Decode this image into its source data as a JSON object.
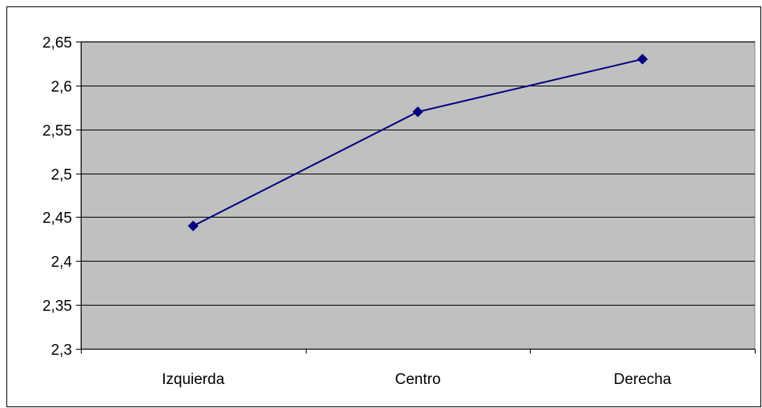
{
  "chart_data": {
    "type": "line",
    "categories": [
      "Izquierda",
      "Centro",
      "Derecha"
    ],
    "series": [
      {
        "values": [
          2.44,
          2.57,
          2.63
        ]
      }
    ],
    "ylim": [
      2.3,
      2.65
    ],
    "yticks": [
      2.3,
      2.35,
      2.4,
      2.45,
      2.5,
      2.55,
      2.6,
      2.65
    ],
    "ytick_labels": [
      "2,3",
      "2,35",
      "2,4",
      "2,45",
      "2,5",
      "2,55",
      "2,6",
      "2,65"
    ],
    "grid": true,
    "legend": "none",
    "colors": {
      "plot_background": "#c0c0c0",
      "line": "#000080",
      "marker": "#000080",
      "grid": "#000000"
    },
    "marker": "diamond"
  }
}
